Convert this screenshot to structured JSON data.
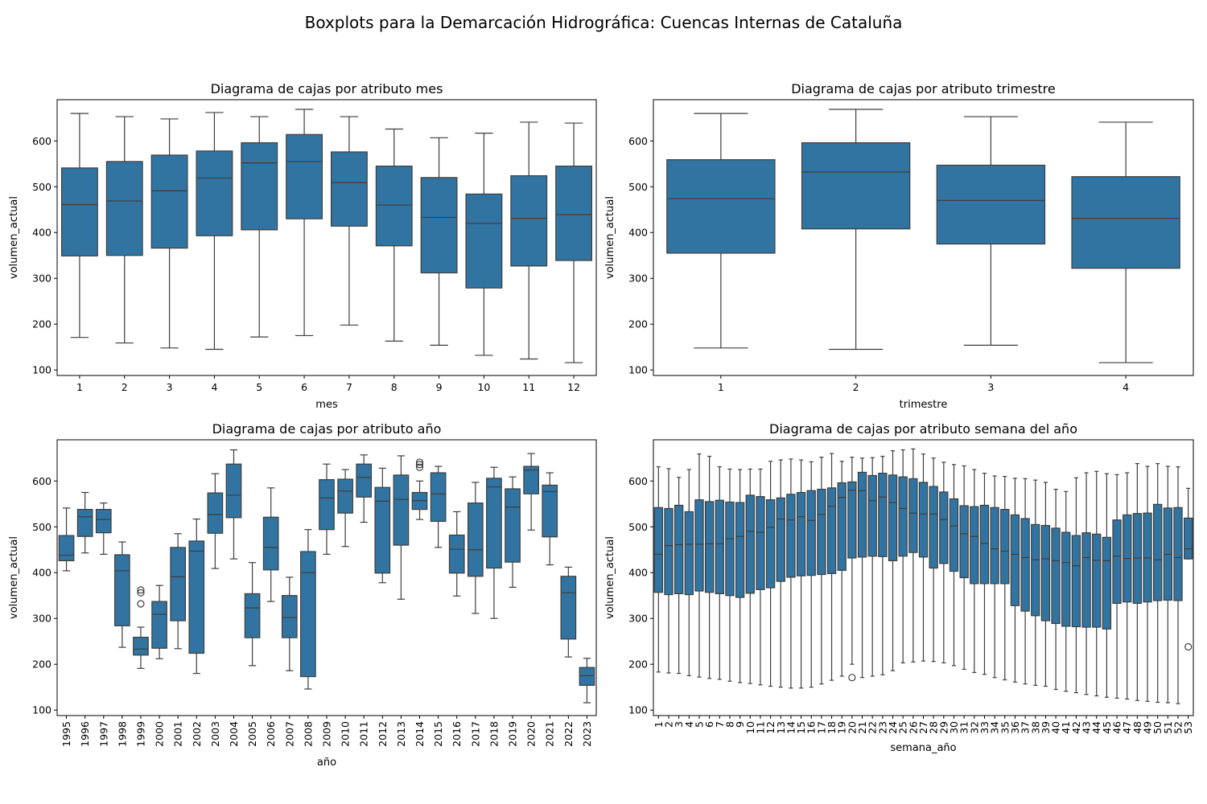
{
  "suptitle": "Boxplots para la Demarcación Hidrográfica: Cuencas Internas de Cataluña",
  "box_color": "#3274a1",
  "line_color": "#3d3d3d",
  "chart_data": [
    {
      "type": "box",
      "title": "Diagrama de cajas por atributo mes",
      "xlabel": "mes",
      "ylabel": "volumen_actual",
      "ylim": [
        88,
        690
      ],
      "yticks": [
        100,
        200,
        300,
        400,
        500,
        600
      ],
      "tick_rotation": 0,
      "categories": [
        "1",
        "2",
        "3",
        "4",
        "5",
        "6",
        "7",
        "8",
        "9",
        "10",
        "11",
        "12"
      ],
      "boxes": [
        {
          "whislo": 171,
          "q1": 349,
          "med": 461,
          "q3": 541,
          "whishi": 660,
          "fliers": []
        },
        {
          "whislo": 159,
          "q1": 350,
          "med": 469,
          "q3": 555,
          "whishi": 653,
          "fliers": []
        },
        {
          "whislo": 148,
          "q1": 366,
          "med": 491,
          "q3": 569,
          "whishi": 648,
          "fliers": []
        },
        {
          "whislo": 145,
          "q1": 393,
          "med": 519,
          "q3": 578,
          "whishi": 662,
          "fliers": []
        },
        {
          "whislo": 172,
          "q1": 406,
          "med": 552,
          "q3": 596,
          "whishi": 653,
          "fliers": []
        },
        {
          "whislo": 175,
          "q1": 430,
          "med": 555,
          "q3": 614,
          "whishi": 669,
          "fliers": []
        },
        {
          "whislo": 198,
          "q1": 414,
          "med": 509,
          "q3": 576,
          "whishi": 653,
          "fliers": []
        },
        {
          "whislo": 163,
          "q1": 371,
          "med": 460,
          "q3": 545,
          "whishi": 626,
          "fliers": []
        },
        {
          "whislo": 154,
          "q1": 312,
          "med": 433,
          "q3": 520,
          "whishi": 607,
          "fliers": []
        },
        {
          "whislo": 132,
          "q1": 279,
          "med": 420,
          "q3": 484,
          "whishi": 617,
          "fliers": []
        },
        {
          "whislo": 124,
          "q1": 327,
          "med": 431,
          "q3": 524,
          "whishi": 641,
          "fliers": []
        },
        {
          "whislo": 116,
          "q1": 339,
          "med": 439,
          "q3": 545,
          "whishi": 639,
          "fliers": []
        }
      ]
    },
    {
      "type": "box",
      "title": "Diagrama de cajas por atributo trimestre",
      "xlabel": "trimestre",
      "ylabel": "volumen_actual",
      "ylim": [
        88,
        690
      ],
      "yticks": [
        100,
        200,
        300,
        400,
        500,
        600
      ],
      "tick_rotation": 0,
      "categories": [
        "1",
        "2",
        "3",
        "4"
      ],
      "boxes": [
        {
          "whislo": 148,
          "q1": 355,
          "med": 474,
          "q3": 559,
          "whishi": 660,
          "fliers": []
        },
        {
          "whislo": 145,
          "q1": 408,
          "med": 532,
          "q3": 596,
          "whishi": 669,
          "fliers": []
        },
        {
          "whislo": 154,
          "q1": 375,
          "med": 470,
          "q3": 547,
          "whishi": 653,
          "fliers": []
        },
        {
          "whislo": 116,
          "q1": 322,
          "med": 431,
          "q3": 522,
          "whishi": 641,
          "fliers": []
        }
      ]
    },
    {
      "type": "box",
      "title": "Diagrama de cajas por atributo año",
      "xlabel": "año",
      "ylabel": "volumen_actual",
      "ylim": [
        88,
        690
      ],
      "yticks": [
        100,
        200,
        300,
        400,
        500,
        600
      ],
      "tick_rotation": -90,
      "categories": [
        "1995",
        "1996",
        "1997",
        "1998",
        "1999",
        "2000",
        "2001",
        "2002",
        "2003",
        "2004",
        "2005",
        "2006",
        "2007",
        "2008",
        "2009",
        "2010",
        "2011",
        "2012",
        "2013",
        "2014",
        "2015",
        "2016",
        "2017",
        "2018",
        "2019",
        "2020",
        "2021",
        "2022",
        "2023"
      ],
      "boxes": [
        {
          "whislo": 404,
          "q1": 426,
          "med": 438,
          "q3": 481,
          "whishi": 541,
          "fliers": []
        },
        {
          "whislo": 443,
          "q1": 479,
          "med": 522,
          "q3": 538,
          "whishi": 575,
          "fliers": []
        },
        {
          "whislo": 440,
          "q1": 487,
          "med": 516,
          "q3": 538,
          "whishi": 552,
          "fliers": []
        },
        {
          "whislo": 237,
          "q1": 284,
          "med": 404,
          "q3": 439,
          "whishi": 467,
          "fliers": []
        },
        {
          "whislo": 191,
          "q1": 220,
          "med": 233,
          "q3": 259,
          "whishi": 281,
          "fliers": [
            332,
            356,
            362
          ]
        },
        {
          "whislo": 212,
          "q1": 235,
          "med": 309,
          "q3": 337,
          "whishi": 372,
          "fliers": []
        },
        {
          "whislo": 234,
          "q1": 295,
          "med": 391,
          "q3": 455,
          "whishi": 485,
          "fliers": []
        },
        {
          "whislo": 180,
          "q1": 224,
          "med": 447,
          "q3": 469,
          "whishi": 517,
          "fliers": []
        },
        {
          "whislo": 409,
          "q1": 486,
          "med": 527,
          "q3": 574,
          "whishi": 616,
          "fliers": []
        },
        {
          "whislo": 430,
          "q1": 520,
          "med": 569,
          "q3": 637,
          "whishi": 668,
          "fliers": []
        },
        {
          "whislo": 197,
          "q1": 258,
          "med": 323,
          "q3": 354,
          "whishi": 422,
          "fliers": []
        },
        {
          "whislo": 337,
          "q1": 406,
          "med": 455,
          "q3": 521,
          "whishi": 585,
          "fliers": []
        },
        {
          "whislo": 186,
          "q1": 258,
          "med": 302,
          "q3": 350,
          "whishi": 390,
          "fliers": []
        },
        {
          "whislo": 146,
          "q1": 173,
          "med": 400,
          "q3": 446,
          "whishi": 494,
          "fliers": []
        },
        {
          "whislo": 440,
          "q1": 494,
          "med": 563,
          "q3": 603,
          "whishi": 637,
          "fliers": []
        },
        {
          "whislo": 457,
          "q1": 530,
          "med": 578,
          "q3": 604,
          "whishi": 625,
          "fliers": []
        },
        {
          "whislo": 510,
          "q1": 565,
          "med": 608,
          "q3": 637,
          "whishi": 657,
          "fliers": []
        },
        {
          "whislo": 378,
          "q1": 399,
          "med": 556,
          "q3": 586,
          "whishi": 628,
          "fliers": []
        },
        {
          "whislo": 342,
          "q1": 460,
          "med": 560,
          "q3": 613,
          "whishi": 655,
          "fliers": []
        },
        {
          "whislo": 516,
          "q1": 538,
          "med": 557,
          "q3": 575,
          "whishi": 600,
          "fliers": [
            630,
            636,
            641
          ]
        },
        {
          "whislo": 455,
          "q1": 512,
          "med": 572,
          "q3": 618,
          "whishi": 632,
          "fliers": []
        },
        {
          "whislo": 349,
          "q1": 399,
          "med": 451,
          "q3": 482,
          "whishi": 533,
          "fliers": []
        },
        {
          "whislo": 311,
          "q1": 392,
          "med": 450,
          "q3": 552,
          "whishi": 597,
          "fliers": []
        },
        {
          "whislo": 300,
          "q1": 410,
          "med": 587,
          "q3": 606,
          "whishi": 630,
          "fliers": []
        },
        {
          "whislo": 368,
          "q1": 423,
          "med": 543,
          "q3": 583,
          "whishi": 609,
          "fliers": []
        },
        {
          "whislo": 493,
          "q1": 572,
          "med": 624,
          "q3": 632,
          "whishi": 660,
          "fliers": []
        },
        {
          "whislo": 417,
          "q1": 478,
          "med": 577,
          "q3": 591,
          "whishi": 618,
          "fliers": []
        },
        {
          "whislo": 216,
          "q1": 255,
          "med": 356,
          "q3": 392,
          "whishi": 412,
          "fliers": []
        },
        {
          "whislo": 116,
          "q1": 154,
          "med": 175,
          "q3": 193,
          "whishi": 213,
          "fliers": []
        }
      ]
    },
    {
      "type": "box",
      "title": "Diagrama de cajas por atributo semana del año",
      "xlabel": "semana_año",
      "ylabel": "volumen_actual",
      "ylim": [
        88,
        690
      ],
      "yticks": [
        100,
        200,
        300,
        400,
        500,
        600
      ],
      "tick_rotation": -90,
      "categories": [
        "1",
        "2",
        "3",
        "4",
        "5",
        "6",
        "7",
        "8",
        "9",
        "10",
        "11",
        "12",
        "13",
        "14",
        "15",
        "16",
        "17",
        "18",
        "19",
        "20",
        "21",
        "22",
        "23",
        "24",
        "25",
        "26",
        "27",
        "28",
        "29",
        "30",
        "31",
        "32",
        "33",
        "34",
        "35",
        "36",
        "37",
        "38",
        "39",
        "40",
        "41",
        "42",
        "43",
        "44",
        "45",
        "46",
        "47",
        "48",
        "49",
        "50",
        "51",
        "52",
        "53"
      ],
      "boxes": [
        {
          "whislo": 183,
          "q1": 357,
          "med": 440,
          "q3": 542,
          "whishi": 631,
          "fliers": []
        },
        {
          "whislo": 181,
          "q1": 352,
          "med": 459,
          "q3": 540,
          "whishi": 627,
          "fliers": []
        },
        {
          "whislo": 180,
          "q1": 354,
          "med": 461,
          "q3": 547,
          "whishi": 608,
          "fliers": []
        },
        {
          "whislo": 175,
          "q1": 352,
          "med": 462,
          "q3": 533,
          "whishi": 625,
          "fliers": []
        },
        {
          "whislo": 172,
          "q1": 360,
          "med": 462,
          "q3": 559,
          "whishi": 659,
          "fliers": []
        },
        {
          "whislo": 169,
          "q1": 357,
          "med": 463,
          "q3": 555,
          "whishi": 654,
          "fliers": []
        },
        {
          "whislo": 167,
          "q1": 354,
          "med": 463,
          "q3": 558,
          "whishi": 631,
          "fliers": []
        },
        {
          "whislo": 163,
          "q1": 350,
          "med": 474,
          "q3": 554,
          "whishi": 626,
          "fliers": []
        },
        {
          "whislo": 160,
          "q1": 346,
          "med": 479,
          "q3": 553,
          "whishi": 625,
          "fliers": []
        },
        {
          "whislo": 158,
          "q1": 355,
          "med": 490,
          "q3": 569,
          "whishi": 626,
          "fliers": []
        },
        {
          "whislo": 155,
          "q1": 363,
          "med": 488,
          "q3": 566,
          "whishi": 626,
          "fliers": []
        },
        {
          "whislo": 152,
          "q1": 367,
          "med": 499,
          "q3": 559,
          "whishi": 643,
          "fliers": []
        },
        {
          "whislo": 150,
          "q1": 381,
          "med": 517,
          "q3": 563,
          "whishi": 646,
          "fliers": []
        },
        {
          "whislo": 148,
          "q1": 390,
          "med": 515,
          "q3": 571,
          "whishi": 648,
          "fliers": []
        },
        {
          "whislo": 148,
          "q1": 393,
          "med": 522,
          "q3": 575,
          "whishi": 646,
          "fliers": []
        },
        {
          "whislo": 150,
          "q1": 394,
          "med": 514,
          "q3": 579,
          "whishi": 642,
          "fliers": []
        },
        {
          "whislo": 157,
          "q1": 396,
          "med": 527,
          "q3": 582,
          "whishi": 652,
          "fliers": []
        },
        {
          "whislo": 165,
          "q1": 398,
          "med": 545,
          "q3": 585,
          "whishi": 660,
          "fliers": []
        },
        {
          "whislo": 174,
          "q1": 405,
          "med": 564,
          "q3": 596,
          "whishi": 643,
          "fliers": []
        },
        {
          "whislo": 200,
          "q1": 432,
          "med": 580,
          "q3": 598,
          "whishi": 652,
          "fliers": [
            171
          ]
        },
        {
          "whislo": 171,
          "q1": 434,
          "med": 579,
          "q3": 619,
          "whishi": 650,
          "fliers": []
        },
        {
          "whislo": 174,
          "q1": 436,
          "med": 557,
          "q3": 612,
          "whishi": 651,
          "fliers": []
        },
        {
          "whislo": 177,
          "q1": 435,
          "med": 565,
          "q3": 617,
          "whishi": 654,
          "fliers": []
        },
        {
          "whislo": 186,
          "q1": 426,
          "med": 553,
          "q3": 613,
          "whishi": 666,
          "fliers": []
        },
        {
          "whislo": 203,
          "q1": 436,
          "med": 540,
          "q3": 609,
          "whishi": 668,
          "fliers": []
        },
        {
          "whislo": 205,
          "q1": 444,
          "med": 530,
          "q3": 605,
          "whishi": 670,
          "fliers": []
        },
        {
          "whislo": 207,
          "q1": 434,
          "med": 528,
          "q3": 597,
          "whishi": 659,
          "fliers": []
        },
        {
          "whislo": 206,
          "q1": 410,
          "med": 528,
          "q3": 588,
          "whishi": 650,
          "fliers": []
        },
        {
          "whislo": 203,
          "q1": 420,
          "med": 516,
          "q3": 576,
          "whishi": 641,
          "fliers": []
        },
        {
          "whislo": 197,
          "q1": 403,
          "med": 502,
          "q3": 561,
          "whishi": 636,
          "fliers": []
        },
        {
          "whislo": 189,
          "q1": 389,
          "med": 485,
          "q3": 546,
          "whishi": 633,
          "fliers": []
        },
        {
          "whislo": 182,
          "q1": 376,
          "med": 479,
          "q3": 544,
          "whishi": 625,
          "fliers": []
        },
        {
          "whislo": 178,
          "q1": 376,
          "med": 464,
          "q3": 547,
          "whishi": 617,
          "fliers": []
        },
        {
          "whislo": 171,
          "q1": 376,
          "med": 452,
          "q3": 542,
          "whishi": 611,
          "fliers": []
        },
        {
          "whislo": 166,
          "q1": 376,
          "med": 447,
          "q3": 538,
          "whishi": 610,
          "fliers": []
        },
        {
          "whislo": 161,
          "q1": 328,
          "med": 440,
          "q3": 526,
          "whishi": 606,
          "fliers": []
        },
        {
          "whislo": 157,
          "q1": 316,
          "med": 433,
          "q3": 518,
          "whishi": 605,
          "fliers": []
        },
        {
          "whislo": 154,
          "q1": 306,
          "med": 428,
          "q3": 505,
          "whishi": 602,
          "fliers": []
        },
        {
          "whislo": 152,
          "q1": 295,
          "med": 430,
          "q3": 503,
          "whishi": 597,
          "fliers": []
        },
        {
          "whislo": 145,
          "q1": 289,
          "med": 426,
          "q3": 497,
          "whishi": 582,
          "fliers": []
        },
        {
          "whislo": 141,
          "q1": 283,
          "med": 422,
          "q3": 488,
          "whishi": 577,
          "fliers": []
        },
        {
          "whislo": 138,
          "q1": 282,
          "med": 415,
          "q3": 481,
          "whishi": 607,
          "fliers": []
        },
        {
          "whislo": 134,
          "q1": 281,
          "med": 433,
          "q3": 487,
          "whishi": 618,
          "fliers": []
        },
        {
          "whislo": 131,
          "q1": 281,
          "med": 427,
          "q3": 484,
          "whishi": 621,
          "fliers": []
        },
        {
          "whislo": 128,
          "q1": 277,
          "med": 426,
          "q3": 477,
          "whishi": 616,
          "fliers": []
        },
        {
          "whislo": 126,
          "q1": 333,
          "med": 436,
          "q3": 515,
          "whishi": 614,
          "fliers": []
        },
        {
          "whislo": 124,
          "q1": 336,
          "med": 431,
          "q3": 526,
          "whishi": 618,
          "fliers": []
        },
        {
          "whislo": 121,
          "q1": 333,
          "med": 432,
          "q3": 529,
          "whishi": 638,
          "fliers": []
        },
        {
          "whislo": 119,
          "q1": 336,
          "med": 432,
          "q3": 530,
          "whishi": 632,
          "fliers": []
        },
        {
          "whislo": 117,
          "q1": 339,
          "med": 428,
          "q3": 549,
          "whishi": 638,
          "fliers": []
        },
        {
          "whislo": 116,
          "q1": 340,
          "med": 440,
          "q3": 541,
          "whishi": 632,
          "fliers": []
        },
        {
          "whislo": 114,
          "q1": 339,
          "med": 433,
          "q3": 542,
          "whishi": 631,
          "fliers": []
        },
        {
          "whislo": 430,
          "q1": 430,
          "med": 452,
          "q3": 519,
          "whishi": 584,
          "fliers": [
            238
          ]
        }
      ]
    }
  ]
}
